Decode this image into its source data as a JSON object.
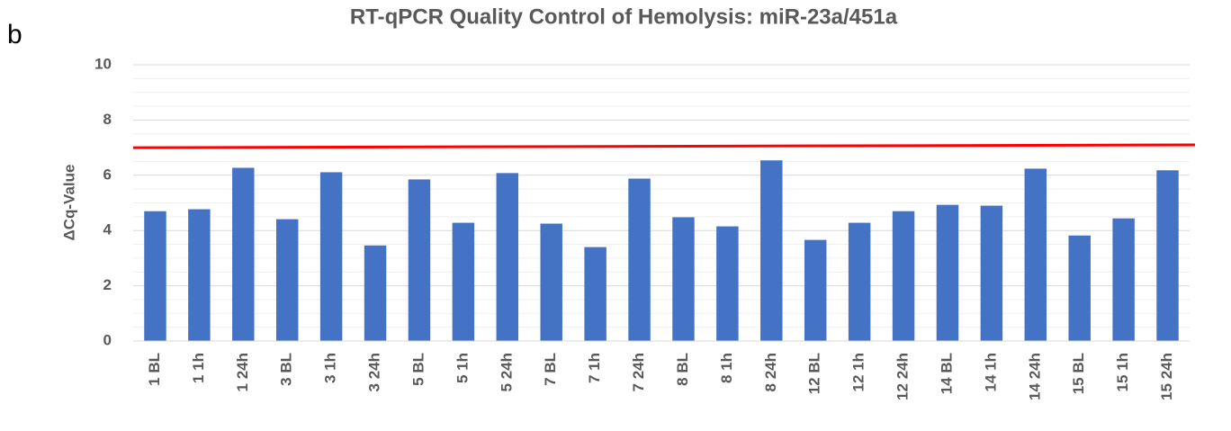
{
  "panel_label": "b",
  "chart_data": {
    "type": "bar",
    "title": "RT-qPCR Quality Control of Hemolysis: miR-23a/451a",
    "y_label": "ΔCq-Value",
    "categories": [
      "1 BL",
      "1 1h",
      "1 24h",
      "3 BL",
      "3 1h",
      "3 24h",
      "5 BL",
      "5 1h",
      "5 24h",
      "7 BL",
      "7 1h",
      "7 24h",
      "8 BL",
      "8 1h",
      "8 24h",
      "12 BL",
      "12 1h",
      "12 24h",
      "14 BL",
      "14 1h",
      "14 24h",
      "15 BL",
      "15 1h",
      "15 24h"
    ],
    "values": [
      4.7,
      4.77,
      6.27,
      4.41,
      6.11,
      3.46,
      5.85,
      4.28,
      6.08,
      4.25,
      3.4,
      5.88,
      4.48,
      4.15,
      6.54,
      3.66,
      4.28,
      4.7,
      4.93,
      4.9,
      6.24,
      3.82,
      4.44,
      6.18
    ],
    "color": "#4472c4",
    "ylim": [
      0,
      10
    ],
    "yticks": [
      0,
      2,
      4,
      6,
      8,
      10
    ],
    "yminorticks": [
      0.5,
      1,
      1.5,
      2.5,
      3,
      3.5,
      4.5,
      5,
      5.5,
      6.5,
      7,
      7.5,
      8.5,
      9,
      9.5
    ],
    "grid": true,
    "reference_line": {
      "color": "#ff0000",
      "values": [
        7,
        7.1
      ]
    }
  }
}
